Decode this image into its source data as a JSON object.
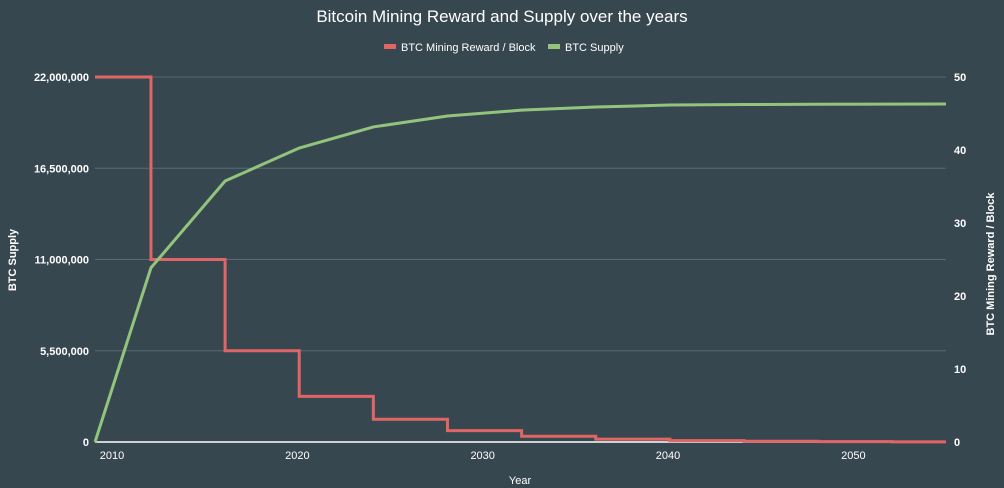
{
  "chart_data": {
    "type": "line",
    "title": "Bitcoin Mining Reward and Supply over the years",
    "xlabel": "Year",
    "ylabel_left": "BTC Supply",
    "ylabel_right": "BTC Mining Reward / Block",
    "legend_position": "top",
    "xlim": [
      2009.08,
      2055
    ],
    "xticks": [
      2010,
      2020,
      2030,
      2040,
      2050
    ],
    "ylim_left": [
      0,
      22000000
    ],
    "yticks_left": [
      "0",
      "5,500,000",
      "11,000,000",
      "16,500,000",
      "22,000,000"
    ],
    "yticks_left_values": [
      0,
      5500000,
      11000000,
      16500000,
      22000000
    ],
    "ylim_right": [
      0,
      50
    ],
    "yticks_right": [
      0,
      10,
      20,
      30,
      40,
      50
    ],
    "grid": true,
    "series": [
      {
        "name": "BTC Mining Reward / Block",
        "axis": "right",
        "color": "#e06666",
        "step": true,
        "x": [
          2009.08,
          2012.1,
          2016.1,
          2020.1,
          2024.1,
          2028.1,
          2032.1,
          2036.1,
          2040.1,
          2044.1,
          2048.1,
          2052.1,
          2055
        ],
        "y": [
          50,
          25,
          12.5,
          6.25,
          3.125,
          1.5625,
          0.78125,
          0.390625,
          0.1953,
          0.0977,
          0.0488,
          0.0244,
          0.0244
        ]
      },
      {
        "name": "BTC Supply",
        "axis": "left",
        "color": "#93c47d",
        "step": false,
        "x": [
          2009.08,
          2012.1,
          2016.1,
          2020.1,
          2024.1,
          2028.1,
          2032.1,
          2036.1,
          2040.1,
          2044.1,
          2048.1,
          2055
        ],
        "y": [
          0,
          10500000,
          15730000,
          17720000,
          18990000,
          19650000,
          20000000,
          20190000,
          20310000,
          20340000,
          20360000,
          20370000
        ]
      }
    ]
  }
}
